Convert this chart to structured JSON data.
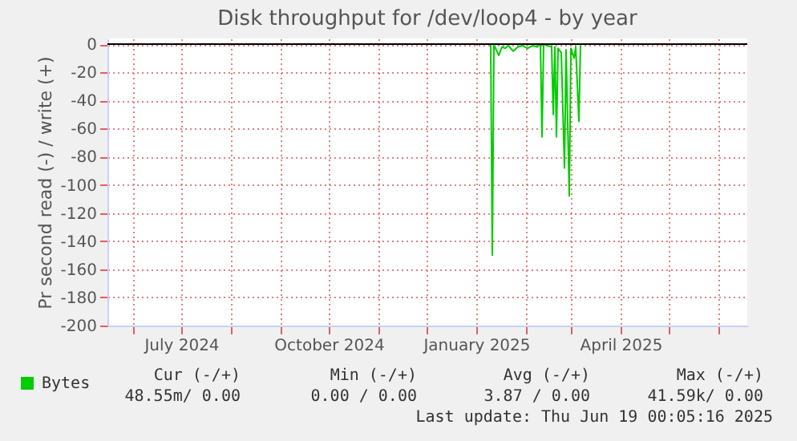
{
  "chart_data": {
    "type": "line",
    "title": "Disk throughput for /dev/loop4 - by year",
    "ylabel": "Pr second read (-) / write (+)",
    "xlim": [
      "2024-05-16",
      "2025-06-19"
    ],
    "xticks": [
      {
        "value": "2024-06-01",
        "label": null
      },
      {
        "value": "2024-07-01",
        "label": "July 2024"
      },
      {
        "value": "2024-08-01",
        "label": null
      },
      {
        "value": "2024-09-01",
        "label": null
      },
      {
        "value": "2024-10-01",
        "label": "October 2024"
      },
      {
        "value": "2024-11-01",
        "label": null
      },
      {
        "value": "2024-12-01",
        "label": null
      },
      {
        "value": "2025-01-01",
        "label": "January 2025"
      },
      {
        "value": "2025-02-01",
        "label": null
      },
      {
        "value": "2025-03-01",
        "label": null
      },
      {
        "value": "2025-04-01",
        "label": "April 2025"
      },
      {
        "value": "2025-05-01",
        "label": null
      },
      {
        "value": "2025-06-01",
        "label": null
      }
    ],
    "ylim": [
      -200,
      4
    ],
    "yticks": [
      -200,
      -180,
      -160,
      -140,
      -120,
      -100,
      -80,
      -60,
      -40,
      -20,
      0
    ],
    "grid": true,
    "legend": "bottom",
    "ref_lines": [
      {
        "axis": "y",
        "value": 0,
        "color": "#000000"
      }
    ],
    "series": [
      {
        "name": "Bytes",
        "color": "#00cc00",
        "x": [
          "2025-01-10",
          "2025-01-11",
          "2025-01-12",
          "2025-01-13",
          "2025-01-15",
          "2025-01-17",
          "2025-01-19",
          "2025-01-21",
          "2025-01-24",
          "2025-01-27",
          "2025-01-30",
          "2025-02-02",
          "2025-02-05",
          "2025-02-08",
          "2025-02-10",
          "2025-02-11",
          "2025-02-12",
          "2025-02-14",
          "2025-02-17",
          "2025-02-18",
          "2025-02-19",
          "2025-02-20",
          "2025-02-21",
          "2025-02-23",
          "2025-02-25",
          "2025-02-26",
          "2025-02-28",
          "2025-03-01",
          "2025-03-03",
          "2025-03-04",
          "2025-03-06",
          "2025-03-07"
        ],
        "values": [
          0,
          -150,
          0,
          -3,
          -8,
          -2,
          -3,
          -1,
          -5,
          -2,
          -1,
          -3,
          -1,
          -2,
          0,
          -66,
          0,
          -1,
          -2,
          -50,
          -2,
          -66,
          -3,
          -6,
          -88,
          -4,
          -108,
          -3,
          -10,
          -2,
          -55,
          0
        ]
      }
    ],
    "annotations": [
      "Cur (-/+)",
      "Min (-/+)",
      "Avg (-/+)",
      "Max (-/+)",
      "48.55m/  0.00",
      "0.00 /  0.00",
      "3.87 /  0.00",
      "41.59k/  0.00",
      "Last update: Thu Jun 19 00:05:16 2025"
    ]
  }
}
